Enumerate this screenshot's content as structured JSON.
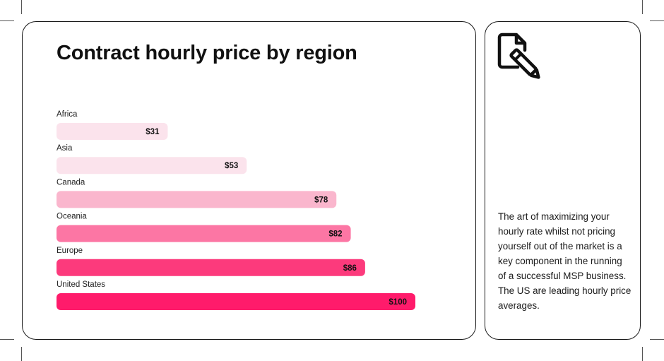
{
  "chart_data": {
    "type": "bar",
    "orientation": "horizontal",
    "title": "Contract hourly price by region",
    "categories": [
      "Africa",
      "Asia",
      "Canada",
      "Oceania",
      "Europe",
      "United States"
    ],
    "values": [
      31,
      53,
      78,
      82,
      86,
      100
    ],
    "value_labels": [
      "$31",
      "$53",
      "$78",
      "$82",
      "$86",
      "$100"
    ],
    "xlim": [
      0,
      100
    ],
    "grid": false,
    "legend": "none",
    "bar_colors": [
      "#fbe3ec",
      "#fbe3ec",
      "#fab6cd",
      "#fc76a4",
      "#fc3a7c",
      "#ff1b6b"
    ]
  },
  "side_panel": {
    "icon": "edit-document-icon",
    "text": "The art of maximizing your hourly rate whilst not pricing yourself out of the market is a key component in the running of a successful MSP business. The US are leading hourly price averages."
  }
}
